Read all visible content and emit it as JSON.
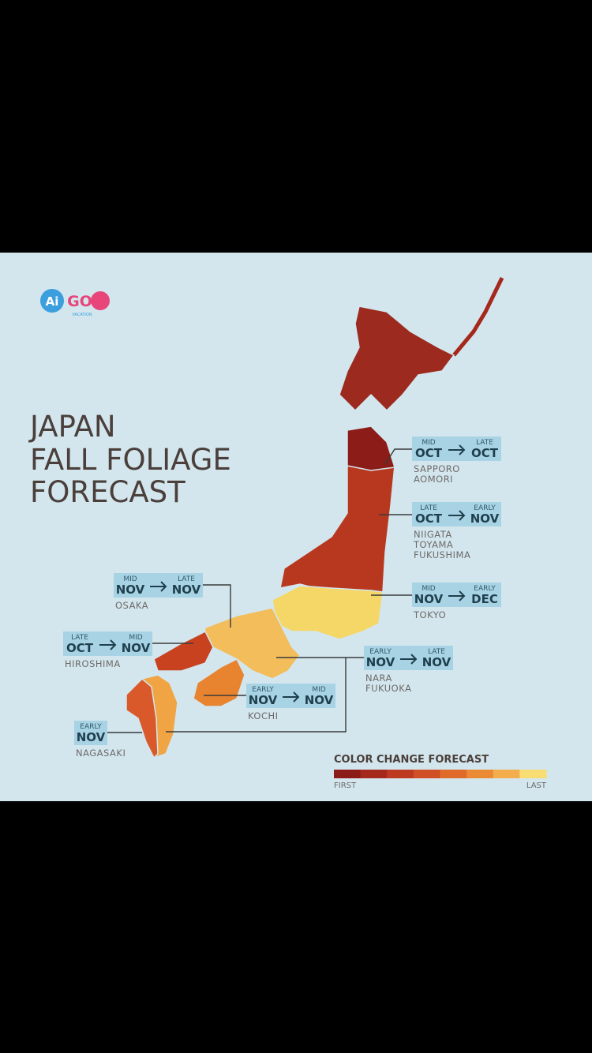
{
  "logo": {
    "left": "Ai",
    "right": "GO",
    "sub": "VACATION"
  },
  "title": [
    "JAPAN",
    "FALL FOLIAGE",
    "FORECAST"
  ],
  "callouts": [
    {
      "from": {
        "qualifier": "MID",
        "month": "OCT"
      },
      "to": {
        "qualifier": "LATE",
        "month": "OCT"
      },
      "cities": [
        "SAPPORO",
        "AOMORI"
      ]
    },
    {
      "from": {
        "qualifier": "LATE",
        "month": "OCT"
      },
      "to": {
        "qualifier": "EARLY",
        "month": "NOV"
      },
      "cities": [
        "NIIGATA",
        "TOYAMA",
        "FUKUSHIMA"
      ]
    },
    {
      "from": {
        "qualifier": "MID",
        "month": "NOV"
      },
      "to": {
        "qualifier": "EARLY",
        "month": "DEC"
      },
      "cities": [
        "TOKYO"
      ]
    },
    {
      "from": {
        "qualifier": "MID",
        "month": "NOV"
      },
      "to": {
        "qualifier": "LATE",
        "month": "NOV"
      },
      "cities": [
        "OSAKA"
      ]
    },
    {
      "from": {
        "qualifier": "LATE",
        "month": "OCT"
      },
      "to": {
        "qualifier": "MID",
        "month": "NOV"
      },
      "cities": [
        "HIROSHIMA"
      ]
    },
    {
      "from": {
        "qualifier": "EARLY",
        "month": "NOV"
      },
      "to": {
        "qualifier": "LATE",
        "month": "NOV"
      },
      "cities": [
        "NARA",
        "FUKUOKA"
      ]
    },
    {
      "from": {
        "qualifier": "EARLY",
        "month": "NOV"
      },
      "to": {
        "qualifier": "MID",
        "month": "NOV"
      },
      "cities": [
        "KOCHI"
      ]
    },
    {
      "from": {
        "qualifier": "EARLY",
        "month": "NOV"
      },
      "cities": [
        "NAGASAKI"
      ]
    }
  ],
  "legend": {
    "title": "COLOR CHANGE FORECAST",
    "first": "FIRST",
    "last": "LAST",
    "colors": [
      "#8b1c17",
      "#a5281d",
      "#bd3a21",
      "#d14f26",
      "#df6a2a",
      "#ea8a35",
      "#f3ad4c",
      "#f7dd72"
    ]
  }
}
